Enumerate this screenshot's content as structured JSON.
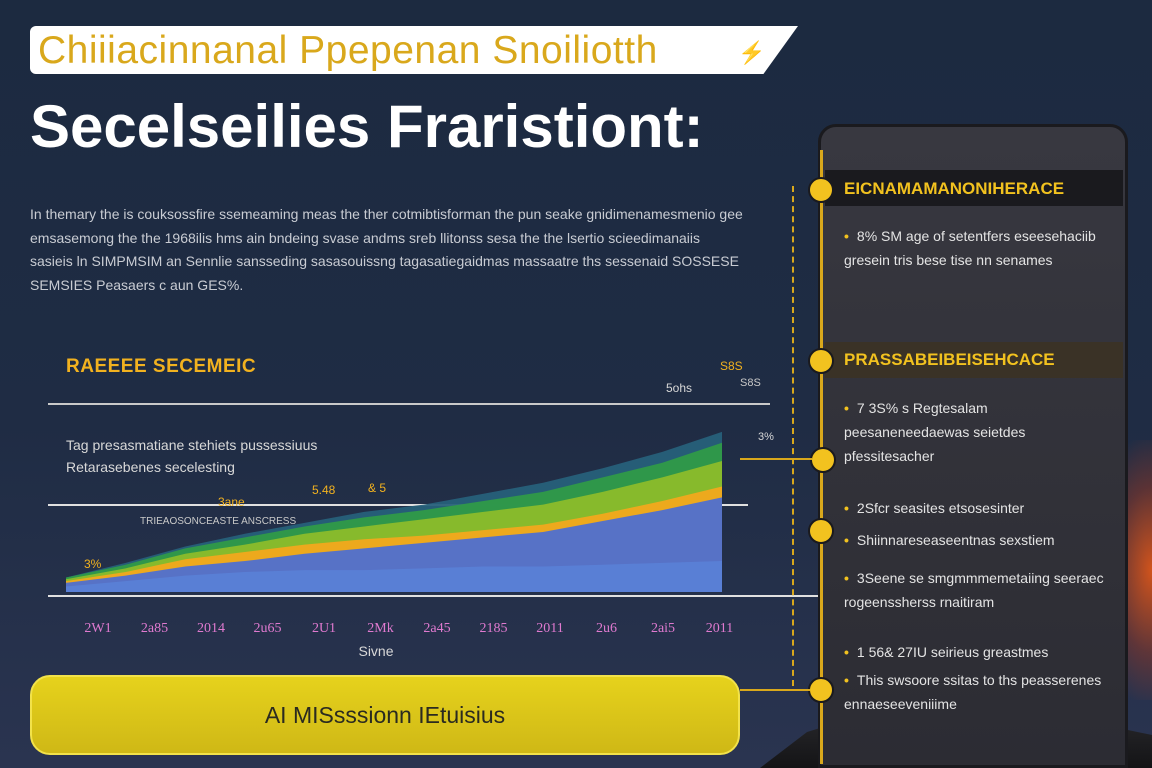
{
  "header": {
    "banner_text": "Chiiiacinnanal Ppepenan Snoiliotth",
    "title": "Secelseilies Fraristiont:"
  },
  "intro": {
    "text": "In themary the is couksossfire ssemeaming meas the ther cotmibtisforman the pun seake gnidimenamesmenio gee emsasemong the the 1968ilis hms ain bndeing svase andms sreb llitonss sesa the the lsertio scieedimanaiis sasieis ln SIMPMSIM an Sennlie sansseding sasasouissng tagasatiegaidmas massaatre ths sessenaid SOSSESE SEMSIES Peasaers c aun GES%."
  },
  "chart_data": {
    "type": "area",
    "title": "RAEEEE SECEMEIC",
    "subtitle_lines": [
      "Tag presasmatiane stehiets pussessiuus",
      "Retarasebenes secelesting"
    ],
    "xlabel": "Sivne",
    "ylabel": "",
    "categories": [
      "2W1",
      "2a85",
      "2014",
      "2u65",
      "2U1",
      "2Mk",
      "2a45",
      "2185",
      "2011",
      "2u6",
      "2ai5",
      "2011"
    ],
    "ylim": [
      0,
      100
    ],
    "series": [
      {
        "values": [
          3,
          6,
          9,
          11,
          12,
          12,
          13,
          14,
          14,
          15,
          16,
          17
        ],
        "color": "#5a7fd6"
      },
      {
        "values": [
          5,
          9,
          14,
          17,
          21,
          24,
          27,
          30,
          33,
          39,
          45,
          52
        ],
        "color": "#4f6fd0"
      },
      {
        "values": [
          6,
          11,
          18,
          22,
          26,
          29,
          31,
          34,
          37,
          43,
          50,
          58
        ],
        "color": "#f2a81c"
      },
      {
        "values": [
          7,
          13,
          21,
          26,
          32,
          36,
          40,
          44,
          48,
          55,
          63,
          72
        ],
        "color": "#8cbc2a"
      },
      {
        "values": [
          8,
          15,
          24,
          30,
          36,
          41,
          45,
          50,
          55,
          63,
          71,
          82
        ],
        "color": "#2f9a48"
      },
      {
        "values": [
          8,
          16,
          25,
          32,
          38,
          44,
          48,
          54,
          60,
          68,
          77,
          88
        ],
        "color": "#27607a"
      }
    ],
    "annotations": [
      {
        "text": "3%",
        "x": "2W1"
      },
      {
        "text": "3ane",
        "x": "2014"
      },
      {
        "text": "5.48",
        "x": "2U1"
      },
      {
        "text": "& 5",
        "x": "2Mk"
      },
      {
        "text": "TRIEAOSONCEASTE ANSCRESS",
        "x": "2a85"
      },
      {
        "text": "5ohs",
        "x": "2u6"
      },
      {
        "text": "S8S",
        "x": "2011"
      },
      {
        "text": "S8S",
        "x": "2011"
      },
      {
        "text": "3%",
        "x": "2011"
      }
    ]
  },
  "panel": {
    "sections": [
      {
        "heading": "EICNAMAMANONIHERACE",
        "items": [
          {
            "text": "8% SM age of setentfers eseesehaciib gresein tris bese tise nn senames"
          }
        ]
      },
      {
        "heading": "PRASSABEIBEISEHCACE",
        "items": [
          {
            "text": "7 3S% s Regtesalam peesaneneedaewas seietdes pfessitesacher"
          }
        ]
      },
      {
        "heading": "",
        "items": [
          {
            "text": "2Sfcr seasites etsosesinter"
          },
          {
            "text": "Shiinnareseaseentnas sexstiem"
          },
          {
            "text": "3Seene se smgmmmemetaiing seeraec rogeenssherss rnaitiram"
          }
        ]
      },
      {
        "heading": "",
        "items": [
          {
            "text": "1 56& 27IU seirieus greastmes"
          },
          {
            "text": "This swsoore ssitas to ths peasserenes ennaeseeveniiime"
          }
        ]
      }
    ]
  },
  "mission_button": {
    "label": "AI MISsssionn IEtuisius"
  },
  "colors": {
    "accent": "#f2c21f",
    "background": "#1f2c44",
    "panel": "#2c2c33"
  }
}
